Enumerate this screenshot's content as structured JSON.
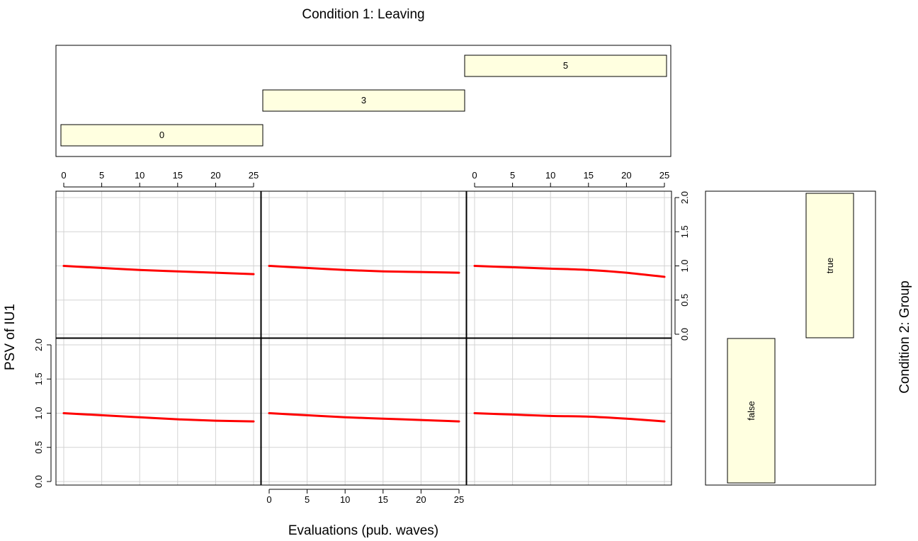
{
  "chart_data": {
    "type": "line",
    "title": "Condition 1: Leaving",
    "xlabel": "Evaluations (pub. waves)",
    "ylabel": "PSV of IU1",
    "row_condition_label": "Condition 2: Group",
    "column_levels": [
      "0",
      "3",
      "5"
    ],
    "row_levels": [
      "true",
      "false"
    ],
    "xlim": [
      0,
      25
    ],
    "ylim": [
      0,
      2
    ],
    "x_ticks": [
      "0",
      "5",
      "10",
      "15",
      "20",
      "25"
    ],
    "y_ticks": [
      "0.0",
      "0.5",
      "1.0",
      "1.5",
      "2.0"
    ],
    "grid": true,
    "line_color": "#ff0000",
    "strip_fill": "#ffffe0",
    "x": [
      0,
      5,
      10,
      15,
      20,
      25
    ],
    "panels": [
      {
        "row": "true",
        "column": "0",
        "values": [
          1.0,
          0.97,
          0.94,
          0.92,
          0.9,
          0.88
        ]
      },
      {
        "row": "true",
        "column": "3",
        "values": [
          1.0,
          0.97,
          0.94,
          0.92,
          0.91,
          0.9
        ]
      },
      {
        "row": "true",
        "column": "5",
        "values": [
          1.0,
          0.98,
          0.96,
          0.94,
          0.9,
          0.84
        ]
      },
      {
        "row": "false",
        "column": "0",
        "values": [
          1.0,
          0.97,
          0.94,
          0.91,
          0.89,
          0.88
        ]
      },
      {
        "row": "false",
        "column": "3",
        "values": [
          1.0,
          0.97,
          0.94,
          0.92,
          0.9,
          0.88
        ]
      },
      {
        "row": "false",
        "column": "5",
        "values": [
          1.0,
          0.98,
          0.96,
          0.95,
          0.92,
          0.88
        ]
      }
    ]
  }
}
